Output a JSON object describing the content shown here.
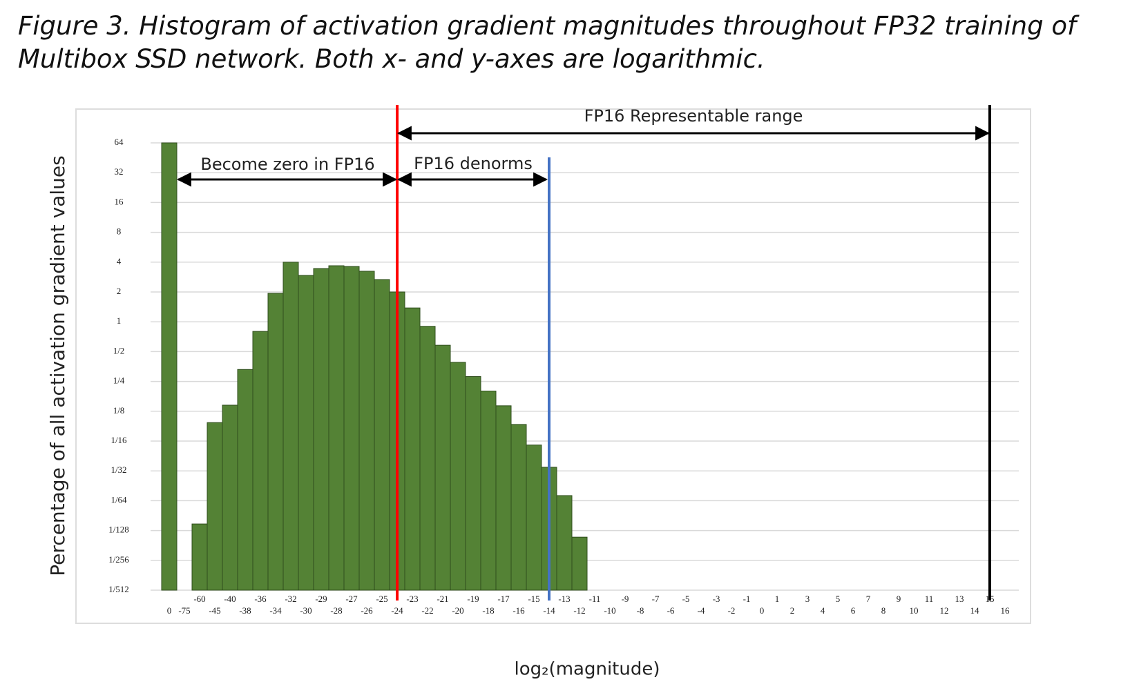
{
  "caption": [
    "Figure 3. Histogram of activation gradient magnitudes throughout FP32 training of",
    "Multibox SSD network. Both x- and y-axes are logarithmic."
  ],
  "chart_data": {
    "type": "bar",
    "xlabel": "log₂(magnitude)",
    "ylabel": "Percentage of all activation gradient values",
    "categories": [
      0,
      -75,
      -60,
      -45,
      -40,
      -38,
      -36,
      -34,
      -32,
      -30,
      -29,
      -28,
      -27,
      -26,
      -25,
      -24,
      -23,
      -22,
      -21,
      -20,
      -19,
      -18,
      -17,
      -16,
      -15,
      -14,
      -13,
      -12,
      -11,
      -10,
      -9,
      -8,
      -7,
      -6,
      -5,
      -4,
      -3,
      -2,
      -1,
      0,
      1,
      2,
      3,
      4,
      5,
      6,
      7,
      8,
      9,
      10,
      11,
      12,
      13,
      14,
      15,
      16
    ],
    "values": [
      64,
      null,
      0.0091,
      0.096,
      0.144,
      0.33,
      0.8,
      1.94,
      4,
      2.94,
      3.45,
      3.68,
      3.62,
      3.24,
      2.67,
      2,
      1.38,
      0.9,
      0.58,
      0.39,
      0.28,
      0.2,
      0.142,
      0.092,
      0.057,
      0.034,
      0.0176,
      0.0067,
      null,
      null,
      null,
      null,
      null,
      null,
      null,
      null,
      null,
      null,
      null,
      null,
      null,
      null,
      null,
      null,
      null,
      null,
      null,
      null,
      null,
      null,
      null,
      null,
      null,
      null,
      null,
      null
    ],
    "color": "#548235",
    "log_y": true,
    "ylim": [
      0.001953125,
      64
    ],
    "yticks": [
      {
        "value": 0.001953125,
        "label": "1/512"
      },
      {
        "value": 0.00390625,
        "label": "1/256"
      },
      {
        "value": 0.0078125,
        "label": "1/128"
      },
      {
        "value": 0.015625,
        "label": "1/64"
      },
      {
        "value": 0.03125,
        "label": "1/32"
      },
      {
        "value": 0.0625,
        "label": "1/16"
      },
      {
        "value": 0.125,
        "label": "1/8"
      },
      {
        "value": 0.25,
        "label": "1/4"
      },
      {
        "value": 0.5,
        "label": "1/2"
      },
      1,
      2,
      4,
      8,
      16,
      32,
      64
    ],
    "grid": true,
    "vlines": [
      {
        "x": -24,
        "color": "#ff0000"
      },
      {
        "x": -14,
        "color": "#4472c4"
      },
      {
        "x": 15,
        "color": "#000000"
      }
    ],
    "annotations": [
      "Become zero in FP16",
      "FP16 denorms",
      "FP16 Representable range"
    ]
  }
}
